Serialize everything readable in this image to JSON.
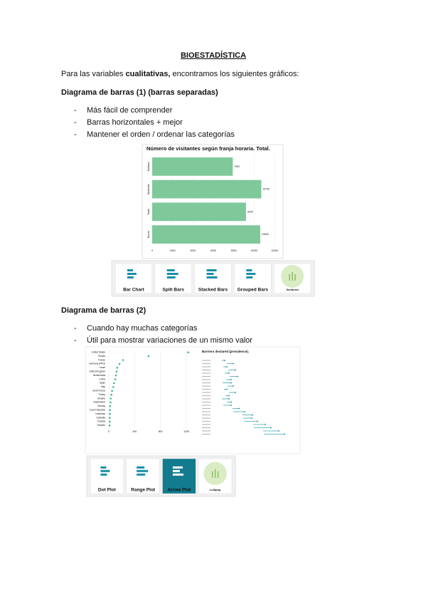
{
  "header": {
    "title": "BIOESTADÍSTICA"
  },
  "intro": {
    "before": "Para las variables ",
    "bold": "cualitativas,",
    "after": " encontramos los siguientes gráficos:"
  },
  "sections": [
    {
      "heading": "Diagrama de barras (1) (barras separadas)",
      "bullets": [
        "Más fácil de comprender",
        "Barras horizontales + mejor",
        "Mantener el orden / ordenar las categorías"
      ],
      "cards": [
        "Bar Chart",
        "Split Bars",
        "Stacked Bars",
        "Grouped Bars",
        "Sunburst"
      ]
    },
    {
      "heading": "Diagrama de barras (2)",
      "bullets": [
        "Cuando hay muchas categorías",
        "Útil para mostrar variaciones de un mismo valor"
      ],
      "cards": [
        "Dot Plot",
        "Range Plot",
        "Arrow Plot",
        "Lollipop"
      ]
    }
  ],
  "chart_data": [
    {
      "type": "bar",
      "title": "Número de visitantes según franja horaria. Total.",
      "categories": [
        "Mañana",
        "Mediodía",
        "Tarde",
        "Noche"
      ],
      "values": [
        7900,
        10700,
        9200,
        10600
      ],
      "color": "#7ec89a",
      "xlim": [
        0,
        12000
      ],
      "xticks": [
        0,
        2000,
        4000,
        6000,
        8000,
        10000,
        12000
      ]
    },
    {
      "type": "dot",
      "categories": [
        "United States",
        "Russia",
        "France",
        "Germany (FRG)",
        "Israel",
        "United Kingdom",
        "Netherlands",
        "China",
        "Spain",
        "Italy",
        "South Korea",
        "Turkey",
        "Ukraine",
        "Switzerland",
        "Norway",
        "Czech Republic",
        "Indonesia",
        "Australia",
        "Canada",
        "Sweden"
      ],
      "values": [
        1230,
        615,
        220,
        165,
        130,
        120,
        110,
        100,
        80,
        70,
        50,
        40,
        30,
        28,
        20,
        18,
        16,
        15,
        14,
        12
      ],
      "color": "#3fb59a",
      "xlim": [
        0,
        1200
      ],
      "xticks": [
        0,
        400,
        800,
        1200
      ]
    },
    {
      "type": "arrow",
      "title": "Barriers declared (prevalence)."
    }
  ]
}
